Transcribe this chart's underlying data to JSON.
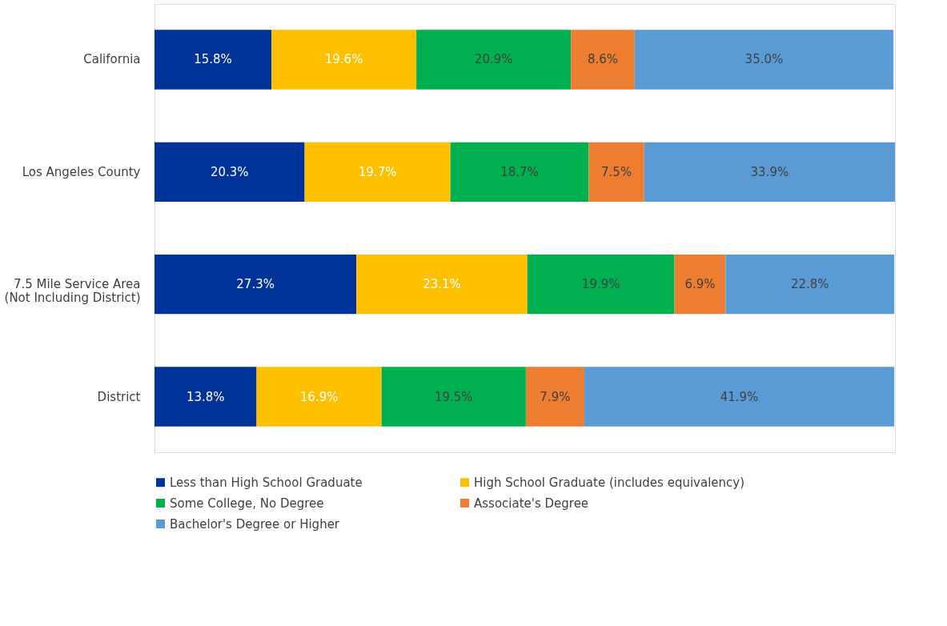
{
  "chart_data": {
    "type": "bar",
    "orientation": "horizontal",
    "stacked": true,
    "legend": "bottom",
    "grid": false,
    "categories": [
      "California",
      "Los Angeles County",
      "7.5 Mile Service Area\n(Not Including District)",
      "District"
    ],
    "series": [
      {
        "name": "Less than High School Graduate",
        "color": "#003399",
        "values": [
          15.8,
          20.3,
          27.3,
          13.8
        ],
        "value_labels": [
          "15.8%",
          "20.3%",
          "27.3%",
          "13.8%"
        ]
      },
      {
        "name": "High School Graduate (includes equivalency)",
        "color": "#ffc000",
        "values": [
          19.6,
          19.7,
          23.1,
          16.9
        ],
        "value_labels": [
          "19.6%",
          "19.7%",
          "23.1%",
          "16.9%"
        ]
      },
      {
        "name": "Some College, No Degree",
        "color": "#00b050",
        "values": [
          20.9,
          18.7,
          19.9,
          19.5
        ],
        "value_labels": [
          "20.9%",
          "18.7%",
          "19.9%",
          "19.5%"
        ]
      },
      {
        "name": "Associate's Degree",
        "color": "#ed7d31",
        "values": [
          8.6,
          7.5,
          6.9,
          7.9
        ],
        "value_labels": [
          "8.6%",
          "7.5%",
          "6.9%",
          "7.9%"
        ]
      },
      {
        "name": "Bachelor's Degree or Higher",
        "color": "#5b9bd5",
        "values": [
          35.0,
          33.9,
          22.8,
          41.9
        ],
        "value_labels": [
          "35.0%",
          "33.9%",
          "22.8%",
          "41.9%"
        ]
      }
    ]
  }
}
